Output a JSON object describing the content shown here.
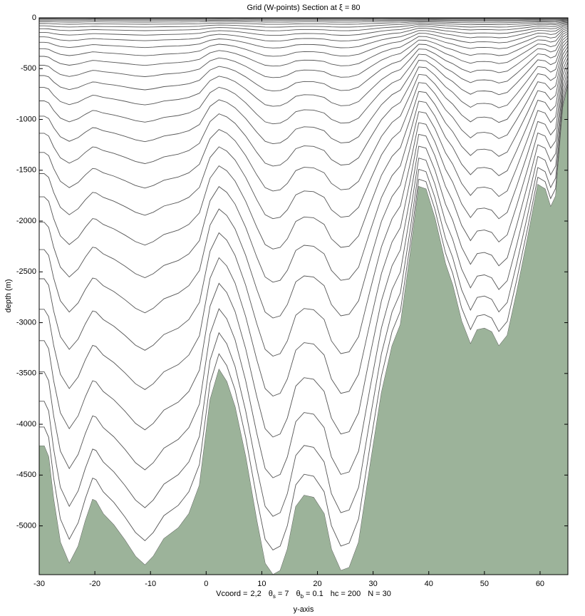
{
  "chart_data": {
    "type": "section",
    "title": "Grid (W-points) Section at  ξ = 80",
    "x_label": "y-axis",
    "y_label": "depth (m)",
    "annotation": {
      "vcoord_label": "Vcoord =",
      "vcoord": "2,2",
      "equals": "=",
      "params": [
        {
          "name": "θ",
          "sub": "s",
          "value": 7
        },
        {
          "name": "θ",
          "sub": "b",
          "value": 0.1
        },
        {
          "name": "hc",
          "value": 200
        },
        {
          "name": "N",
          "value": 30
        }
      ]
    },
    "x": [
      -30,
      -29.1,
      -28.3,
      -27.4,
      -26.2,
      -24.6,
      -23,
      -21.7,
      -20.4,
      -19.8,
      -18.5,
      -16.6,
      -14.6,
      -12.7,
      -11,
      -9.5,
      -7.6,
      -5,
      -3.1,
      -1.2,
      0.7,
      2.3,
      3.7,
      5.2,
      7.1,
      9.1,
      10.6,
      12,
      13.3,
      14.6,
      16.1,
      17.6,
      19.3,
      21.2,
      22.5,
      24.2,
      25.7,
      27.4,
      29.5,
      31.5,
      33.4,
      34.9,
      36.6,
      38.2,
      39.5,
      41.1,
      43,
      44.3,
      45.9,
      47.5,
      48.7,
      50,
      51.3,
      52.6,
      54.1,
      55.8,
      57.7,
      59.6,
      60.9,
      61.9,
      62.8,
      64.1,
      65
    ],
    "bathymetry": [
      -4213,
      -4213,
      -4320,
      -4740,
      -5160,
      -5370,
      -5200,
      -4950,
      -4740,
      -4755,
      -4880,
      -4990,
      -5140,
      -5300,
      -5385,
      -5300,
      -5126,
      -5020,
      -4880,
      -4600,
      -3760,
      -3460,
      -3580,
      -3830,
      -4320,
      -4950,
      -5370,
      -5480,
      -5440,
      -5230,
      -4810,
      -4700,
      -4720,
      -4880,
      -5230,
      -5440,
      -5410,
      -5160,
      -4390,
      -3690,
      -3230,
      -3020,
      -2350,
      -1660,
      -1685,
      -1970,
      -2420,
      -2630,
      -2985,
      -3210,
      -3070,
      -3055,
      -3090,
      -3230,
      -3125,
      -2700,
      -2180,
      -1640,
      -1685,
      -1860,
      -1755,
      -880,
      -670
    ],
    "bathymetry_color": "#9cb39a",
    "line_color": "#555555",
    "xlim": [
      -30,
      65
    ],
    "xticks": [
      -30,
      -20,
      -10,
      0,
      10,
      20,
      30,
      40,
      50,
      60
    ],
    "ylim": [
      -5480,
      0
    ],
    "yticks": [
      0,
      -500,
      -1000,
      -1500,
      -2000,
      -2500,
      -3000,
      -3500,
      -4000,
      -4500,
      -5000
    ]
  }
}
